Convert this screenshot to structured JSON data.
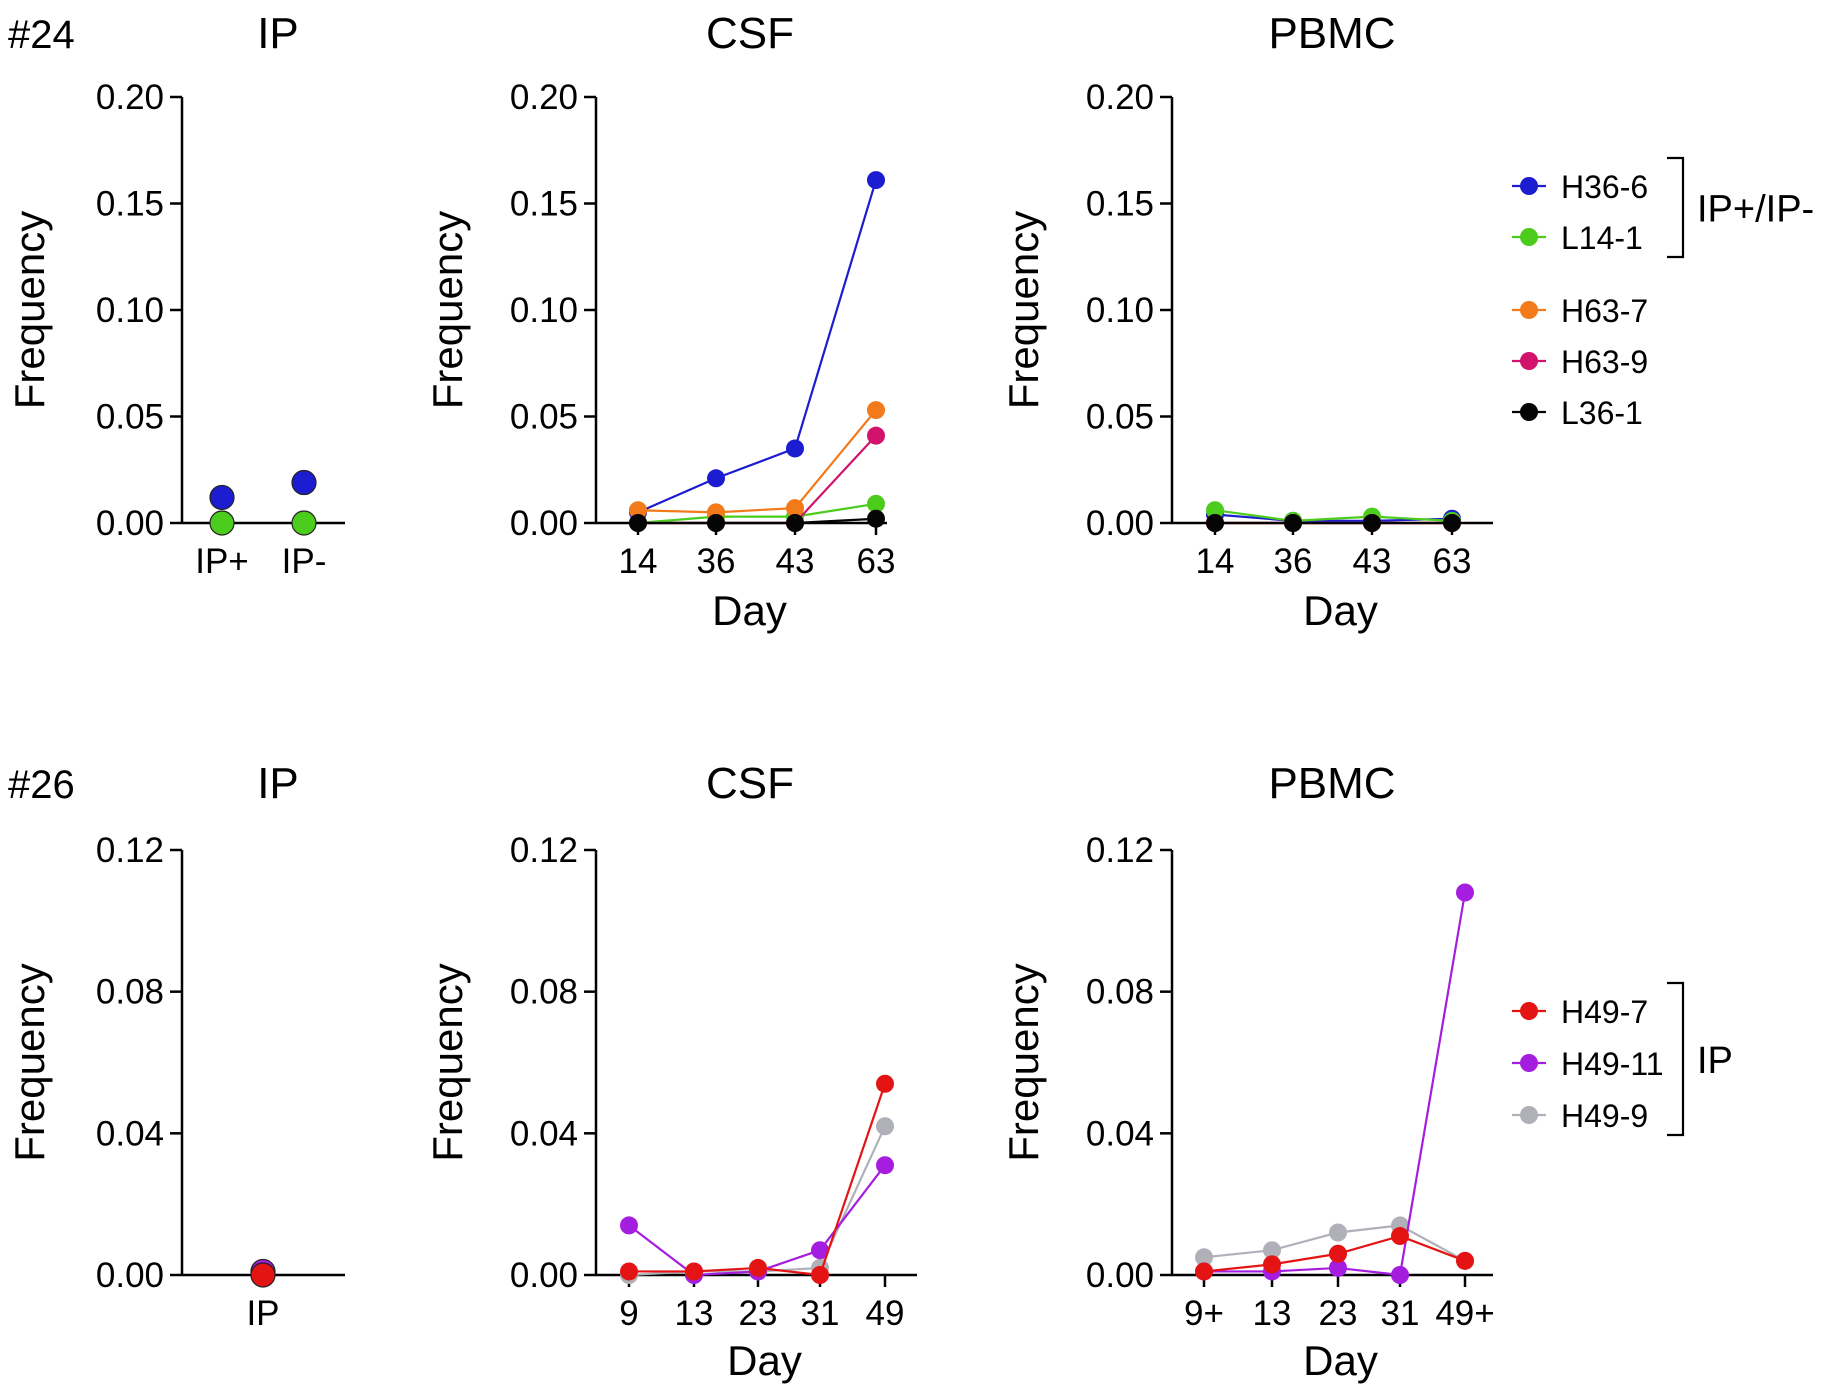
{
  "colors": {
    "H36-6": "#1c1cd0",
    "L14-1": "#4ccc1c",
    "H63-7": "#f27a1a",
    "H63-9": "#d1136b",
    "L36-1": "#050505",
    "H49-7": "#e41414",
    "H49-11": "#a51ee0",
    "H49-9": "#b0b0b8"
  },
  "figure_rows": [
    {
      "tag": "#24",
      "legend": {
        "groups": [
          {
            "items": [
              "H36-6",
              "L14-1"
            ],
            "bracket_label": "IP+/IP-"
          },
          {
            "items": [
              "H63-7",
              "H63-9",
              "L36-1"
            ],
            "bracket_label": ""
          }
        ]
      }
    },
    {
      "tag": "#26",
      "legend": {
        "groups": [
          {
            "items": [
              "H49-7",
              "H49-11",
              "H49-9"
            ],
            "bracket_label": "IP"
          }
        ]
      }
    }
  ],
  "chart_data": [
    {
      "type": "scatter",
      "title": "IP",
      "ylabel": "Frequency",
      "xlabel": "",
      "ylim": [
        0,
        0.2
      ],
      "yticks": [
        "0.00",
        "0.05",
        "0.10",
        "0.15",
        "0.20"
      ],
      "categories": [
        "IP+",
        "IP-"
      ],
      "series": [
        {
          "name": "H36-6",
          "values": [
            0.012,
            0.019
          ]
        },
        {
          "name": "L14-1",
          "values": [
            0.0,
            0.0
          ]
        }
      ]
    },
    {
      "type": "line",
      "title": "CSF",
      "ylabel": "Frequency",
      "xlabel": "Day",
      "ylim": [
        0,
        0.2
      ],
      "yticks": [
        "0.00",
        "0.05",
        "0.10",
        "0.15",
        "0.20"
      ],
      "categories": [
        "14",
        "36",
        "43",
        "63"
      ],
      "series": [
        {
          "name": "H36-6",
          "values": [
            0.005,
            0.021,
            0.035,
            0.161
          ]
        },
        {
          "name": "L14-1",
          "values": [
            0.0,
            0.003,
            0.003,
            0.009
          ]
        },
        {
          "name": "H63-7",
          "values": [
            0.006,
            0.005,
            0.007,
            0.053
          ]
        },
        {
          "name": "H63-9",
          "values": [
            0.0,
            0.0,
            0.0,
            0.041
          ]
        },
        {
          "name": "L36-1",
          "values": [
            0.0,
            0.0,
            0.0,
            0.002
          ]
        }
      ]
    },
    {
      "type": "line",
      "title": "PBMC",
      "ylabel": "Frequency",
      "xlabel": "Day",
      "ylim": [
        0,
        0.2
      ],
      "yticks": [
        "0.00",
        "0.05",
        "0.10",
        "0.15",
        "0.20"
      ],
      "categories": [
        "14",
        "36",
        "43",
        "63"
      ],
      "series": [
        {
          "name": "H36-6",
          "values": [
            0.004,
            0.001,
            0.001,
            0.002
          ]
        },
        {
          "name": "L14-1",
          "values": [
            0.006,
            0.001,
            0.003,
            0.001
          ]
        },
        {
          "name": "H63-7",
          "values": [
            0.0,
            0.0,
            0.0,
            0.0
          ]
        },
        {
          "name": "H63-9",
          "values": [
            0.0,
            0.0,
            0.0,
            0.0
          ]
        },
        {
          "name": "L36-1",
          "values": [
            0.0,
            0.0,
            0.0,
            0.0
          ]
        }
      ]
    },
    {
      "type": "scatter",
      "title": "IP",
      "ylabel": "Frequency",
      "xlabel": "",
      "ylim": [
        0,
        0.12
      ],
      "yticks": [
        "0.00",
        "0.04",
        "0.08",
        "0.12"
      ],
      "categories": [
        "IP"
      ],
      "series": [
        {
          "name": "H49-11",
          "values": [
            0.001
          ]
        },
        {
          "name": "H49-7",
          "values": [
            0.0
          ]
        }
      ]
    },
    {
      "type": "line",
      "title": "CSF",
      "ylabel": "Frequency",
      "xlabel": "Day",
      "ylim": [
        0,
        0.12
      ],
      "yticks": [
        "0.00",
        "0.04",
        "0.08",
        "0.12"
      ],
      "categories": [
        "9",
        "13",
        "23",
        "31",
        "49"
      ],
      "series": [
        {
          "name": "H49-9",
          "values": [
            0.0,
            0.001,
            0.001,
            0.002,
            0.042
          ]
        },
        {
          "name": "H49-11",
          "values": [
            0.014,
            0.0,
            0.001,
            0.007,
            0.031
          ]
        },
        {
          "name": "H49-7",
          "values": [
            0.001,
            0.001,
            0.002,
            0.0,
            0.054
          ]
        }
      ]
    },
    {
      "type": "line",
      "title": "PBMC",
      "ylabel": "Frequency",
      "xlabel": "Day",
      "ylim": [
        0,
        0.12
      ],
      "yticks": [
        "0.00",
        "0.04",
        "0.08",
        "0.12"
      ],
      "categories": [
        "9+",
        "13",
        "23",
        "31",
        "49+"
      ],
      "series": [
        {
          "name": "H49-9",
          "values": [
            0.005,
            0.007,
            0.012,
            0.014,
            0.004
          ]
        },
        {
          "name": "H49-11",
          "values": [
            0.001,
            0.001,
            0.002,
            0.0,
            0.108
          ]
        },
        {
          "name": "H49-7",
          "values": [
            0.001,
            0.003,
            0.006,
            0.011,
            0.004
          ]
        }
      ]
    }
  ]
}
